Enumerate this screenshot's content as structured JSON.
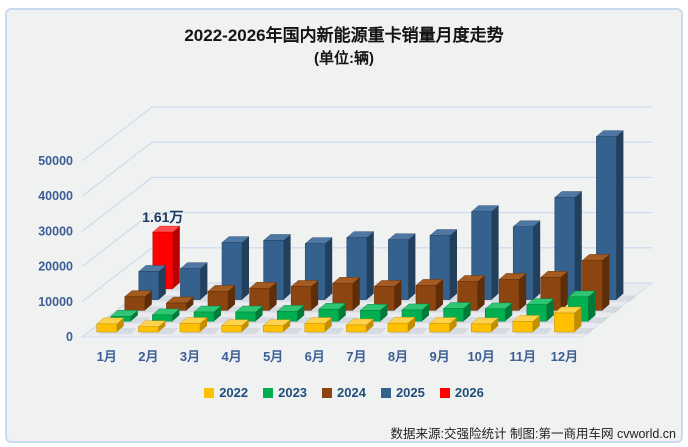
{
  "ui": {
    "title": "2022-2026年国内新能源重卡销量月度走势",
    "subtitle": "(单位:辆)",
    "footer": "数据来源:交强险统计 制图:第一商用车网 cvworld.cn"
  },
  "chart_data": {
    "type": "bar",
    "projection": "3d-depth-series",
    "title": "2022-2026年国内新能源重卡销量月度走势",
    "subtitle": "(单位:辆)",
    "categories": [
      "1月",
      "2月",
      "3月",
      "4月",
      "5月",
      "6月",
      "7月",
      "8月",
      "9月",
      "10月",
      "11月",
      "12月"
    ],
    "ylim": [
      0,
      50000
    ],
    "y_ticks": [
      0,
      10000,
      20000,
      30000,
      40000,
      50000
    ],
    "grid": true,
    "legend_position": "bottom",
    "series": [
      {
        "name": "2022",
        "color": "#FFC000",
        "color_side": "#C18F00",
        "color_top": "#FFD24D",
        "values": [
          2300,
          1500,
          2400,
          1800,
          1800,
          2400,
          2000,
          2500,
          2400,
          2300,
          3000,
          5400
        ]
      },
      {
        "name": "2023",
        "color": "#00B050",
        "color_side": "#007A38",
        "color_top": "#2EC573",
        "values": [
          1400,
          1800,
          2600,
          2600,
          2800,
          3400,
          3100,
          3200,
          3600,
          3500,
          4700,
          6900
        ]
      },
      {
        "name": "2024",
        "color": "#8C4510",
        "color_side": "#5F2E09",
        "color_top": "#A35B21",
        "values": [
          3900,
          2100,
          5400,
          6300,
          6800,
          7700,
          6800,
          7100,
          8200,
          8800,
          9400,
          14200
        ]
      },
      {
        "name": "2025",
        "color": "#35618F",
        "color_side": "#223F5C",
        "color_top": "#4F77A3",
        "values": [
          8000,
          8800,
          16200,
          16800,
          15900,
          17600,
          17000,
          18200,
          25000,
          20700,
          29000,
          46300
        ]
      },
      {
        "name": "2026",
        "color": "#FE0000",
        "color_side": "#B80000",
        "color_top": "#FF4D4D",
        "values": [
          16100,
          null,
          null,
          null,
          null,
          null,
          null,
          null,
          null,
          null,
          null,
          null
        ]
      }
    ],
    "annotation": {
      "series": "2026",
      "category": "1月",
      "text": "1.61万",
      "value": 16100
    }
  },
  "colors": {
    "grid": "#C9D9EE",
    "axis_text": "#3D5E95",
    "legend_text": "#1F4E79",
    "annotation_text": "#17375E",
    "card_bg": "#F0F1F1",
    "card_border": "#C9DAEE",
    "floor": "#E9EBEF",
    "floor_edge": "#D6E0EE"
  }
}
